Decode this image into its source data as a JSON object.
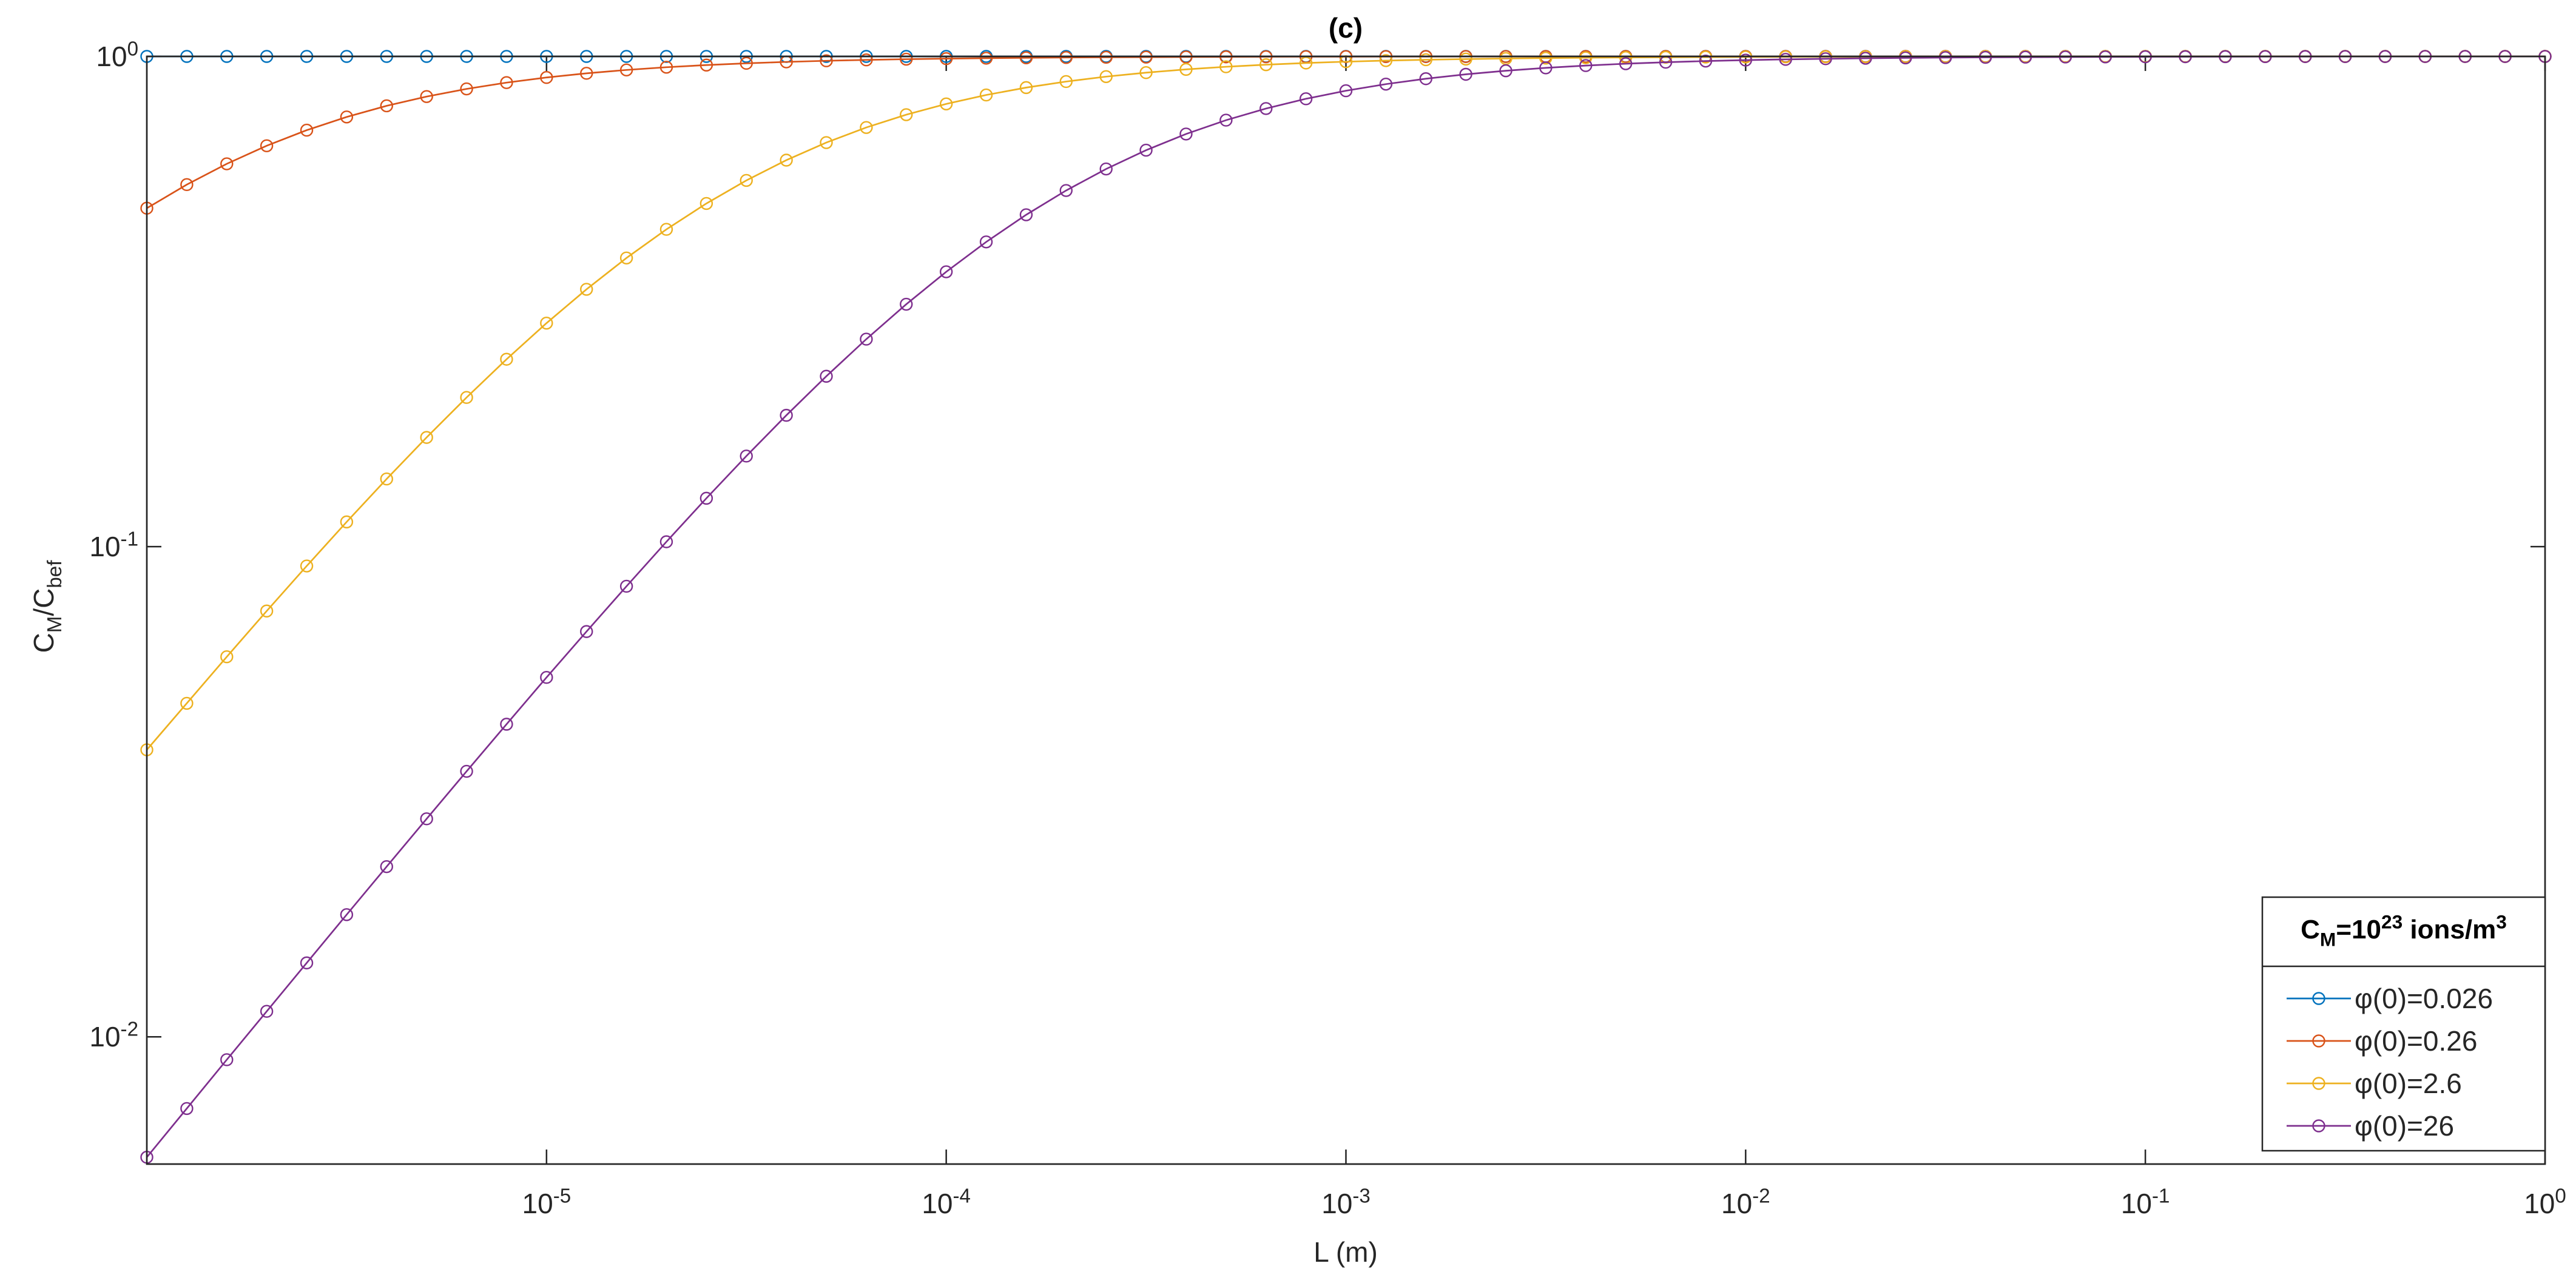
{
  "chart_data": {
    "type": "line",
    "title": "(c)",
    "xlabel": "L (m)",
    "ylabel": "C_{M}/C_{bef}",
    "legend_title": "C_{M}=10^{23} ions/m^{3}",
    "legend_position": "southeast",
    "xscale": "log",
    "yscale": "log",
    "grid": false,
    "markers": "circle",
    "xlim": [
      1e-06,
      1
    ],
    "ylim": [
      0.0055,
      1
    ],
    "xticks": [
      {
        "value": 1e-05,
        "label": "10^{-5}"
      },
      {
        "value": 0.0001,
        "label": "10^{-4}"
      },
      {
        "value": 0.001,
        "label": "10^{-3}"
      },
      {
        "value": 0.01,
        "label": "10^{-2}"
      },
      {
        "value": 0.1,
        "label": "10^{-1}"
      },
      {
        "value": 1,
        "label": "10^{0}"
      }
    ],
    "yticks": [
      {
        "value": 0.01,
        "label": "10^{-2}"
      },
      {
        "value": 0.1,
        "label": "10^{-1}"
      },
      {
        "value": 1,
        "label": "10^{0}"
      }
    ],
    "x": [
      1e-06,
      1.259e-06,
      1.585e-06,
      1.995e-06,
      2.512e-06,
      3.162e-06,
      3.981e-06,
      5.012e-06,
      6.31e-06,
      7.943e-06,
      1e-05,
      1.259e-05,
      1.585e-05,
      1.995e-05,
      2.512e-05,
      3.162e-05,
      3.981e-05,
      5.012e-05,
      6.31e-05,
      7.943e-05,
      0.0001,
      0.0001259,
      0.0001585,
      0.0001995,
      0.0002512,
      0.0003162,
      0.0003981,
      0.0005012,
      0.000631,
      0.0007943,
      0.001,
      0.001259,
      0.001585,
      0.001995,
      0.002512,
      0.003162,
      0.003981,
      0.005012,
      0.00631,
      0.007943,
      0.01,
      0.01259,
      0.01585,
      0.01995,
      0.02512,
      0.03162,
      0.03981,
      0.05012,
      0.0631,
      0.07943,
      0.1,
      0.1259,
      0.1585,
      0.1995,
      0.2512,
      0.3162,
      0.3981,
      0.5012,
      0.631,
      0.7943,
      1
    ],
    "series": [
      {
        "name": "φ(0)=0.026",
        "color": "#0072bd",
        "values": [
          1,
          1,
          1,
          1,
          1,
          1,
          1,
          1,
          1,
          1,
          1,
          1,
          1,
          1,
          1,
          1,
          1,
          1,
          1,
          1,
          1,
          1,
          1,
          1,
          1,
          1,
          1,
          1,
          1,
          1,
          1,
          1,
          1,
          1,
          1,
          1,
          1,
          1,
          1,
          1,
          1,
          1,
          1,
          1,
          1,
          1,
          1,
          1,
          1,
          1,
          1,
          1,
          1,
          1,
          1,
          1,
          1,
          1,
          1,
          1,
          1
        ]
      },
      {
        "name": "φ(0)=0.26",
        "color": "#d95319",
        "values": [
          0.4902,
          0.5476,
          0.6038,
          0.6573,
          0.7072,
          0.7525,
          0.7929,
          0.8282,
          0.8585,
          0.8842,
          0.9058,
          0.9237,
          0.9384,
          0.9505,
          0.9602,
          0.9682,
          0.9745,
          0.9797,
          0.9838,
          0.9871,
          0.9897,
          0.9918,
          0.9935,
          0.9948,
          0.9959,
          0.9967,
          0.9974,
          0.9979,
          0.9984,
          0.9987,
          0.999,
          0.9992,
          0.9993,
          0.9995,
          0.9996,
          0.9997,
          0.9997,
          0.9998,
          0.9998,
          0.9999,
          0.9999,
          0.9999,
          0.9999,
          0.9999,
          1,
          1,
          1,
          1,
          1,
          1,
          1,
          1,
          1,
          1,
          1,
          1,
          1,
          1,
          1,
          1,
          1
        ]
      },
      {
        "name": "φ(0)=2.6",
        "color": "#edb120",
        "values": [
          0.0385,
          0.0479,
          0.0596,
          0.0739,
          0.0913,
          0.1123,
          0.1374,
          0.167,
          0.2015,
          0.2411,
          0.2857,
          0.3349,
          0.388,
          0.4438,
          0.5012,
          0.5585,
          0.6143,
          0.6672,
          0.7162,
          0.7606,
          0.8,
          0.8343,
          0.8638,
          0.8886,
          0.9095,
          0.9267,
          0.9409,
          0.9525,
          0.9619,
          0.9695,
          0.9756,
          0.9805,
          0.9845,
          0.9876,
          0.9902,
          0.9922,
          0.9938,
          0.995,
          0.9961,
          0.9969,
          0.9975,
          0.998,
          0.9984,
          0.9987,
          0.999,
          0.9992,
          0.9994,
          0.9995,
          0.9996,
          0.9997,
          0.9998,
          0.9998,
          0.9998,
          0.9999,
          0.9999,
          0.9999,
          0.9999,
          1,
          1,
          1,
          1
        ]
      },
      {
        "name": "φ(0)=26",
        "color": "#7e2f8e",
        "values": [
          0.00568,
          0.00714,
          0.00898,
          0.01127,
          0.01415,
          0.01775,
          0.02224,
          0.02784,
          0.0348,
          0.04342,
          0.0541,
          0.0671,
          0.083,
          0.1023,
          0.1255,
          0.153,
          0.1853,
          0.2226,
          0.265,
          0.3122,
          0.3636,
          0.4184,
          0.4753,
          0.5327,
          0.5894,
          0.6437,
          0.6946,
          0.7412,
          0.7829,
          0.8195,
          0.8511,
          0.878,
          0.9006,
          0.9194,
          0.9349,
          0.9476,
          0.9579,
          0.9663,
          0.973,
          0.9784,
          0.9828,
          0.9863,
          0.9891,
          0.9913,
          0.9931,
          0.9945,
          0.9956,
          0.9965,
          0.9972,
          0.9978,
          0.9983,
          0.9986,
          0.9989,
          0.9991,
          0.9993,
          0.9994,
          0.9996,
          0.9997,
          0.9997,
          0.9998,
          0.9998
        ]
      }
    ]
  }
}
